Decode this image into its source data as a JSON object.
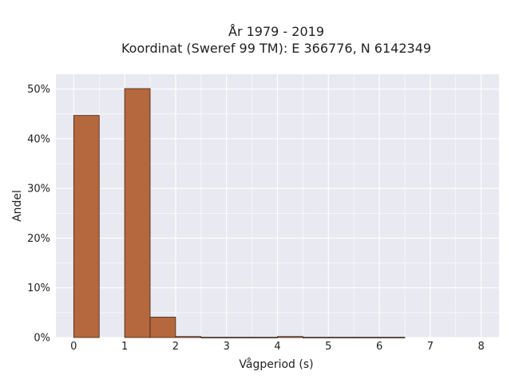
{
  "chart_data": {
    "type": "bar",
    "title_line1": "År 1979 - 2019",
    "title_line2": "Koordinat (Sweref 99 TM): E 366776, N 6142349",
    "xlabel": "Vågperiod (s)",
    "ylabel": "Andel",
    "xlim": [
      -0.35,
      8.35
    ],
    "ylim": [
      0,
      0.53
    ],
    "x_ticks": [
      "0",
      "1",
      "2",
      "3",
      "4",
      "5",
      "6",
      "7",
      "8"
    ],
    "y_ticks": [
      {
        "value": 0,
        "label": "0%"
      },
      {
        "value": 0.1,
        "label": "10%"
      },
      {
        "value": 0.2,
        "label": "20%"
      },
      {
        "value": 0.3,
        "label": "30%"
      },
      {
        "value": 0.4,
        "label": "40%"
      },
      {
        "value": 0.5,
        "label": "50%"
      }
    ],
    "bin_width": 0.5,
    "bins": [
      {
        "start": 0.0,
        "value": 0.447
      },
      {
        "start": 0.5,
        "value": 0.0
      },
      {
        "start": 1.0,
        "value": 0.501
      },
      {
        "start": 1.5,
        "value": 0.041
      },
      {
        "start": 2.0,
        "value": 0.002
      },
      {
        "start": 2.5,
        "value": 0.0005
      },
      {
        "start": 3.0,
        "value": 0.0005
      },
      {
        "start": 3.5,
        "value": 0.0005
      },
      {
        "start": 4.0,
        "value": 0.002
      },
      {
        "start": 4.5,
        "value": 0.0005
      },
      {
        "start": 5.0,
        "value": 0.0005
      },
      {
        "start": 5.5,
        "value": 0.0005
      },
      {
        "start": 6.0,
        "value": 0.0005
      }
    ],
    "grid": true,
    "colors": {
      "bar_fill": "#b5683d",
      "bar_edge": "#3c2418",
      "plot_background": "#e9e9f1",
      "grid": "#ffffff"
    }
  }
}
